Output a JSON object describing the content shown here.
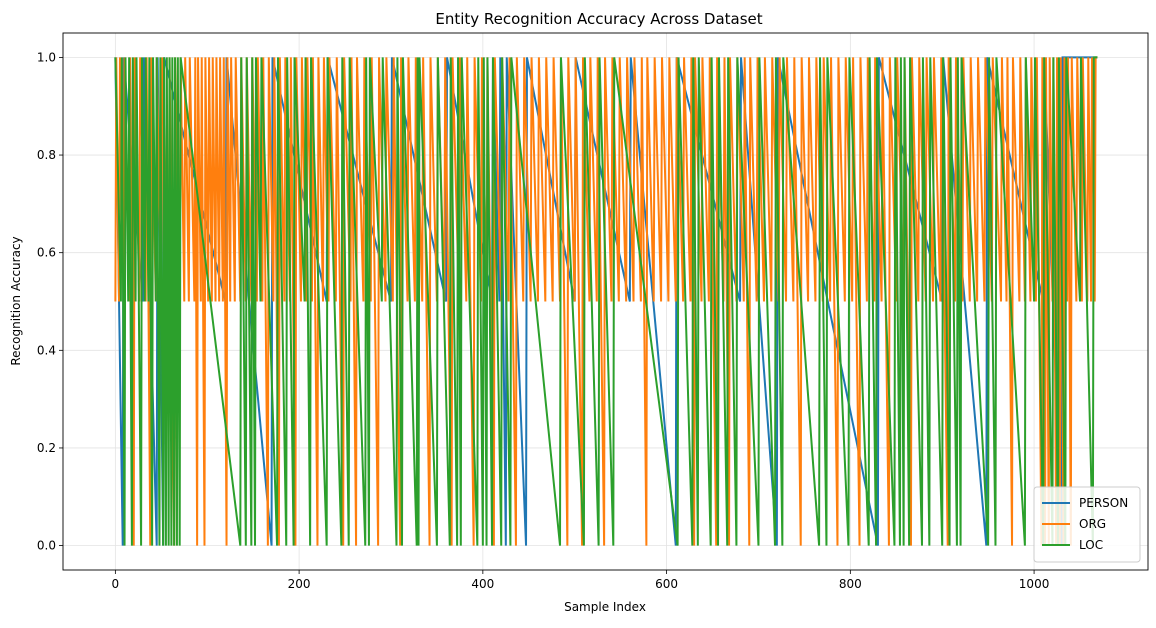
{
  "chart_data": {
    "type": "line",
    "title": "Entity Recognition Accuracy Across Dataset",
    "xlabel": "Sample Index",
    "ylabel": "Recognition Accuracy",
    "xlim": [
      -57,
      1124
    ],
    "ylim": [
      -0.05,
      1.05
    ],
    "xticks": [
      0,
      200,
      400,
      600,
      800,
      1000
    ],
    "xtick_labels": [
      "0",
      "200",
      "400",
      "600",
      "800",
      "1000"
    ],
    "yticks": [
      0.0,
      0.2,
      0.4,
      0.6,
      0.8,
      1.0
    ],
    "ytick_labels": [
      "0.0",
      "0.2",
      "0.4",
      "0.6",
      "0.8",
      "1.0"
    ],
    "grid": true,
    "legend_position": "lower-right",
    "x_start": 0,
    "x_end": 1069,
    "series": [
      {
        "name": "PERSON",
        "color": "#1f77b4",
        "drops": [
          {
            "x": 8,
            "y": 0.0
          },
          {
            "x": 30,
            "y": 0.5
          },
          {
            "x": 45,
            "y": 0.0
          },
          {
            "x": 52,
            "y": 0.0
          },
          {
            "x": 120,
            "y": 0.5
          },
          {
            "x": 170,
            "y": 0.0
          },
          {
            "x": 230,
            "y": 0.5
          },
          {
            "x": 300,
            "y": 0.5
          },
          {
            "x": 360,
            "y": 0.5
          },
          {
            "x": 410,
            "y": 0.5
          },
          {
            "x": 418,
            "y": 0.5
          },
          {
            "x": 425,
            "y": 0.0
          },
          {
            "x": 447,
            "y": 0.0
          },
          {
            "x": 500,
            "y": 0.5
          },
          {
            "x": 560,
            "y": 0.5
          },
          {
            "x": 610,
            "y": 0.0
          },
          {
            "x": 680,
            "y": 0.5
          },
          {
            "x": 720,
            "y": 0.0
          },
          {
            "x": 830,
            "y": 0.0
          },
          {
            "x": 900,
            "y": 0.5
          },
          {
            "x": 948,
            "y": 0.0
          },
          {
            "x": 1010,
            "y": 0.5
          },
          {
            "x": 1030,
            "y": 0.0
          }
        ]
      },
      {
        "name": "ORG",
        "color": "#ff7f0e",
        "drops": [
          {
            "x": 0,
            "y": 0.5
          },
          {
            "x": 4,
            "y": 0.5
          },
          {
            "x": 9,
            "y": 0.5
          },
          {
            "x": 15,
            "y": 0.5
          },
          {
            "x": 20,
            "y": 0.0
          },
          {
            "x": 26,
            "y": 0.5
          },
          {
            "x": 33,
            "y": 0.5
          },
          {
            "x": 38,
            "y": 0.0
          },
          {
            "x": 44,
            "y": 0.5
          },
          {
            "x": 50,
            "y": 0.5
          },
          {
            "x": 58,
            "y": 0.5
          },
          {
            "x": 64,
            "y": 0.0
          },
          {
            "x": 70,
            "y": 0.5
          },
          {
            "x": 75,
            "y": 0.5
          },
          {
            "x": 80,
            "y": 0.5
          },
          {
            "x": 86,
            "y": 0.5
          },
          {
            "x": 89,
            "y": 0.0
          },
          {
            "x": 93,
            "y": 0.5
          },
          {
            "x": 97,
            "y": 0.0
          },
          {
            "x": 101,
            "y": 0.5
          },
          {
            "x": 105,
            "y": 0.5
          },
          {
            "x": 109,
            "y": 0.5
          },
          {
            "x": 113,
            "y": 0.5
          },
          {
            "x": 117,
            "y": 0.5
          },
          {
            "x": 121,
            "y": 0.0
          },
          {
            "x": 125,
            "y": 0.5
          },
          {
            "x": 130,
            "y": 0.5
          },
          {
            "x": 136,
            "y": 0.5
          },
          {
            "x": 142,
            "y": 0.5
          },
          {
            "x": 148,
            "y": 0.5
          },
          {
            "x": 154,
            "y": 0.5
          },
          {
            "x": 160,
            "y": 0.5
          },
          {
            "x": 166,
            "y": 0.0
          },
          {
            "x": 172,
            "y": 0.5
          },
          {
            "x": 178,
            "y": 0.0
          },
          {
            "x": 184,
            "y": 0.5
          },
          {
            "x": 190,
            "y": 0.5
          },
          {
            "x": 196,
            "y": 0.0
          },
          {
            "x": 202,
            "y": 0.5
          },
          {
            "x": 208,
            "y": 0.5
          },
          {
            "x": 214,
            "y": 0.5
          },
          {
            "x": 220,
            "y": 0.0
          },
          {
            "x": 226,
            "y": 0.5
          },
          {
            "x": 232,
            "y": 0.5
          },
          {
            "x": 240,
            "y": 0.5
          },
          {
            "x": 248,
            "y": 0.0
          },
          {
            "x": 256,
            "y": 0.5
          },
          {
            "x": 262,
            "y": 0.0
          },
          {
            "x": 270,
            "y": 0.5
          },
          {
            "x": 278,
            "y": 0.5
          },
          {
            "x": 286,
            "y": 0.0
          },
          {
            "x": 294,
            "y": 0.5
          },
          {
            "x": 302,
            "y": 0.5
          },
          {
            "x": 310,
            "y": 0.0
          },
          {
            "x": 318,
            "y": 0.5
          },
          {
            "x": 326,
            "y": 0.5
          },
          {
            "x": 334,
            "y": 0.5
          },
          {
            "x": 342,
            "y": 0.0
          },
          {
            "x": 350,
            "y": 0.5
          },
          {
            "x": 358,
            "y": 0.5
          },
          {
            "x": 366,
            "y": 0.0
          },
          {
            "x": 374,
            "y": 0.5
          },
          {
            "x": 382,
            "y": 0.5
          },
          {
            "x": 390,
            "y": 0.0
          },
          {
            "x": 398,
            "y": 0.5
          },
          {
            "x": 404,
            "y": 0.5
          },
          {
            "x": 412,
            "y": 0.0
          },
          {
            "x": 420,
            "y": 0.5
          },
          {
            "x": 428,
            "y": 0.5
          },
          {
            "x": 436,
            "y": 0.0
          },
          {
            "x": 444,
            "y": 0.5
          },
          {
            "x": 452,
            "y": 0.5
          },
          {
            "x": 460,
            "y": 0.5
          },
          {
            "x": 468,
            "y": 0.5
          },
          {
            "x": 476,
            "y": 0.5
          },
          {
            "x": 484,
            "y": 0.5
          },
          {
            "x": 492,
            "y": 0.0
          },
          {
            "x": 500,
            "y": 0.5
          },
          {
            "x": 508,
            "y": 0.0
          },
          {
            "x": 516,
            "y": 0.5
          },
          {
            "x": 524,
            "y": 0.5
          },
          {
            "x": 532,
            "y": 0.0
          },
          {
            "x": 540,
            "y": 0.5
          },
          {
            "x": 548,
            "y": 0.5
          },
          {
            "x": 556,
            "y": 0.5
          },
          {
            "x": 564,
            "y": 0.5
          },
          {
            "x": 572,
            "y": 0.5
          },
          {
            "x": 578,
            "y": 0.0
          },
          {
            "x": 586,
            "y": 0.5
          },
          {
            "x": 594,
            "y": 0.5
          },
          {
            "x": 602,
            "y": 0.5
          },
          {
            "x": 610,
            "y": 0.5
          },
          {
            "x": 618,
            "y": 0.5
          },
          {
            "x": 626,
            "y": 0.5
          },
          {
            "x": 630,
            "y": 0.0
          },
          {
            "x": 638,
            "y": 0.5
          },
          {
            "x": 646,
            "y": 0.5
          },
          {
            "x": 654,
            "y": 0.0
          },
          {
            "x": 662,
            "y": 0.5
          },
          {
            "x": 668,
            "y": 0.0
          },
          {
            "x": 676,
            "y": 0.5
          },
          {
            "x": 684,
            "y": 0.5
          },
          {
            "x": 690,
            "y": 0.0
          },
          {
            "x": 698,
            "y": 0.5
          },
          {
            "x": 706,
            "y": 0.5
          },
          {
            "x": 714,
            "y": 0.5
          },
          {
            "x": 722,
            "y": 0.5
          },
          {
            "x": 730,
            "y": 0.5
          },
          {
            "x": 738,
            "y": 0.5
          },
          {
            "x": 746,
            "y": 0.0
          },
          {
            "x": 754,
            "y": 0.5
          },
          {
            "x": 762,
            "y": 0.5
          },
          {
            "x": 770,
            "y": 0.5
          },
          {
            "x": 778,
            "y": 0.5
          },
          {
            "x": 786,
            "y": 0.0
          },
          {
            "x": 794,
            "y": 0.5
          },
          {
            "x": 802,
            "y": 0.5
          },
          {
            "x": 810,
            "y": 0.0
          },
          {
            "x": 818,
            "y": 0.5
          },
          {
            "x": 826,
            "y": 0.5
          },
          {
            "x": 834,
            "y": 0.5
          },
          {
            "x": 842,
            "y": 0.0
          },
          {
            "x": 850,
            "y": 0.5
          },
          {
            "x": 858,
            "y": 0.5
          },
          {
            "x": 866,
            "y": 0.0
          },
          {
            "x": 874,
            "y": 0.5
          },
          {
            "x": 882,
            "y": 0.5
          },
          {
            "x": 890,
            "y": 0.5
          },
          {
            "x": 898,
            "y": 0.5
          },
          {
            "x": 906,
            "y": 0.0
          },
          {
            "x": 914,
            "y": 0.5
          },
          {
            "x": 922,
            "y": 0.5
          },
          {
            "x": 930,
            "y": 0.5
          },
          {
            "x": 938,
            "y": 0.5
          },
          {
            "x": 946,
            "y": 0.5
          },
          {
            "x": 954,
            "y": 0.5
          },
          {
            "x": 964,
            "y": 0.5
          },
          {
            "x": 970,
            "y": 0.5
          },
          {
            "x": 976,
            "y": 0.0
          },
          {
            "x": 984,
            "y": 0.5
          },
          {
            "x": 990,
            "y": 0.5
          },
          {
            "x": 996,
            "y": 0.5
          },
          {
            "x": 1002,
            "y": 0.5
          },
          {
            "x": 1008,
            "y": 0.0
          },
          {
            "x": 1012,
            "y": 0.0
          },
          {
            "x": 1016,
            "y": 0.0
          },
          {
            "x": 1020,
            "y": 0.5
          },
          {
            "x": 1024,
            "y": 0.0
          },
          {
            "x": 1028,
            "y": 0.0
          },
          {
            "x": 1032,
            "y": 0.0
          },
          {
            "x": 1036,
            "y": 0.5
          },
          {
            "x": 1040,
            "y": 0.0
          },
          {
            "x": 1046,
            "y": 0.5
          },
          {
            "x": 1052,
            "y": 0.5
          },
          {
            "x": 1058,
            "y": 0.5
          },
          {
            "x": 1062,
            "y": 0.5
          },
          {
            "x": 1066,
            "y": 0.5
          }
        ]
      },
      {
        "name": "LOC",
        "color": "#2ca02c",
        "drops": [
          {
            "x": 6,
            "y": 0.5
          },
          {
            "x": 10,
            "y": 0.0
          },
          {
            "x": 14,
            "y": 0.5
          },
          {
            "x": 18,
            "y": 0.0
          },
          {
            "x": 22,
            "y": 0.5
          },
          {
            "x": 28,
            "y": 0.0
          },
          {
            "x": 32,
            "y": 0.5
          },
          {
            "x": 36,
            "y": 0.5
          },
          {
            "x": 40,
            "y": 0.0
          },
          {
            "x": 44,
            "y": 0.5
          },
          {
            "x": 48,
            "y": 0.0
          },
          {
            "x": 52,
            "y": 0.0
          },
          {
            "x": 55,
            "y": 0.0
          },
          {
            "x": 58,
            "y": 0.0
          },
          {
            "x": 61,
            "y": 0.0
          },
          {
            "x": 64,
            "y": 0.0
          },
          {
            "x": 67,
            "y": 0.0
          },
          {
            "x": 70,
            "y": 0.0
          },
          {
            "x": 136,
            "y": 0.0
          },
          {
            "x": 142,
            "y": 0.0
          },
          {
            "x": 148,
            "y": 0.0
          },
          {
            "x": 152,
            "y": 0.0
          },
          {
            "x": 158,
            "y": 0.5
          },
          {
            "x": 176,
            "y": 0.0
          },
          {
            "x": 186,
            "y": 0.0
          },
          {
            "x": 194,
            "y": 0.0
          },
          {
            "x": 206,
            "y": 0.5
          },
          {
            "x": 212,
            "y": 0.0
          },
          {
            "x": 230,
            "y": 0.0
          },
          {
            "x": 246,
            "y": 0.0
          },
          {
            "x": 254,
            "y": 0.0
          },
          {
            "x": 272,
            "y": 0.0
          },
          {
            "x": 276,
            "y": 0.0
          },
          {
            "x": 290,
            "y": 0.5
          },
          {
            "x": 306,
            "y": 0.0
          },
          {
            "x": 312,
            "y": 0.0
          },
          {
            "x": 328,
            "y": 0.0
          },
          {
            "x": 330,
            "y": 0.0
          },
          {
            "x": 350,
            "y": 0.0
          },
          {
            "x": 364,
            "y": 0.0
          },
          {
            "x": 372,
            "y": 0.0
          },
          {
            "x": 376,
            "y": 0.0
          },
          {
            "x": 394,
            "y": 0.0
          },
          {
            "x": 400,
            "y": 0.0
          },
          {
            "x": 404,
            "y": 0.0
          },
          {
            "x": 410,
            "y": 0.0
          },
          {
            "x": 420,
            "y": 0.0
          },
          {
            "x": 430,
            "y": 0.0
          },
          {
            "x": 484,
            "y": 0.0
          },
          {
            "x": 510,
            "y": 0.0
          },
          {
            "x": 526,
            "y": 0.0
          },
          {
            "x": 542,
            "y": 0.0
          },
          {
            "x": 612,
            "y": 0.0
          },
          {
            "x": 628,
            "y": 0.0
          },
          {
            "x": 634,
            "y": 0.0
          },
          {
            "x": 648,
            "y": 0.0
          },
          {
            "x": 656,
            "y": 0.0
          },
          {
            "x": 666,
            "y": 0.0
          },
          {
            "x": 676,
            "y": 0.0
          },
          {
            "x": 700,
            "y": 0.0
          },
          {
            "x": 718,
            "y": 0.0
          },
          {
            "x": 726,
            "y": 0.0
          },
          {
            "x": 766,
            "y": 0.0
          },
          {
            "x": 774,
            "y": 0.0
          },
          {
            "x": 798,
            "y": 0.0
          },
          {
            "x": 820,
            "y": 0.0
          },
          {
            "x": 828,
            "y": 0.0
          },
          {
            "x": 848,
            "y": 0.0
          },
          {
            "x": 854,
            "y": 0.0
          },
          {
            "x": 858,
            "y": 0.0
          },
          {
            "x": 864,
            "y": 0.0
          },
          {
            "x": 878,
            "y": 0.0
          },
          {
            "x": 886,
            "y": 0.0
          },
          {
            "x": 900,
            "y": 0.0
          },
          {
            "x": 908,
            "y": 0.0
          },
          {
            "x": 916,
            "y": 0.0
          },
          {
            "x": 920,
            "y": 0.0
          },
          {
            "x": 950,
            "y": 0.0
          },
          {
            "x": 958,
            "y": 0.0
          },
          {
            "x": 990,
            "y": 0.0
          },
          {
            "x": 1000,
            "y": 0.5
          },
          {
            "x": 1010,
            "y": 0.0
          },
          {
            "x": 1020,
            "y": 0.0
          },
          {
            "x": 1026,
            "y": 0.0
          },
          {
            "x": 1034,
            "y": 0.0
          },
          {
            "x": 1050,
            "y": 0.5
          },
          {
            "x": 1064,
            "y": 0.0
          }
        ]
      }
    ]
  }
}
